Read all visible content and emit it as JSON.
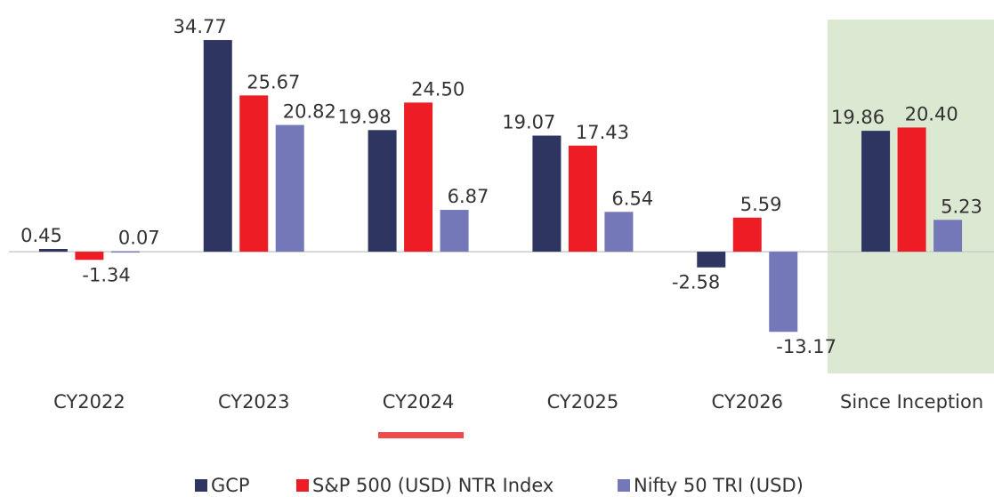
{
  "chart_data": {
    "type": "bar",
    "categories": [
      "CY2022",
      "CY2023",
      "CY2024",
      "CY2025",
      "CY2026",
      "Since Inception"
    ],
    "series": [
      {
        "name": "GCP",
        "color": "#2e3561",
        "values": [
          0.45,
          34.77,
          19.98,
          19.07,
          -2.58,
          19.86
        ]
      },
      {
        "name": "S&P 500 (USD) NTR Index",
        "color": "#ee1c25",
        "values": [
          -1.34,
          25.67,
          24.5,
          17.43,
          5.59,
          20.4
        ],
        "value_labels": [
          "-1.34",
          "25.67",
          "24.50",
          "17.43",
          "5.59",
          "20.40"
        ]
      },
      {
        "name": "Nifty 50 TRI (USD)",
        "color": "#7478b8",
        "values": [
          0.07,
          20.82,
          6.87,
          6.54,
          -13.17,
          5.23
        ]
      }
    ],
    "ylim": [
      -20,
      41
    ]
  }
}
